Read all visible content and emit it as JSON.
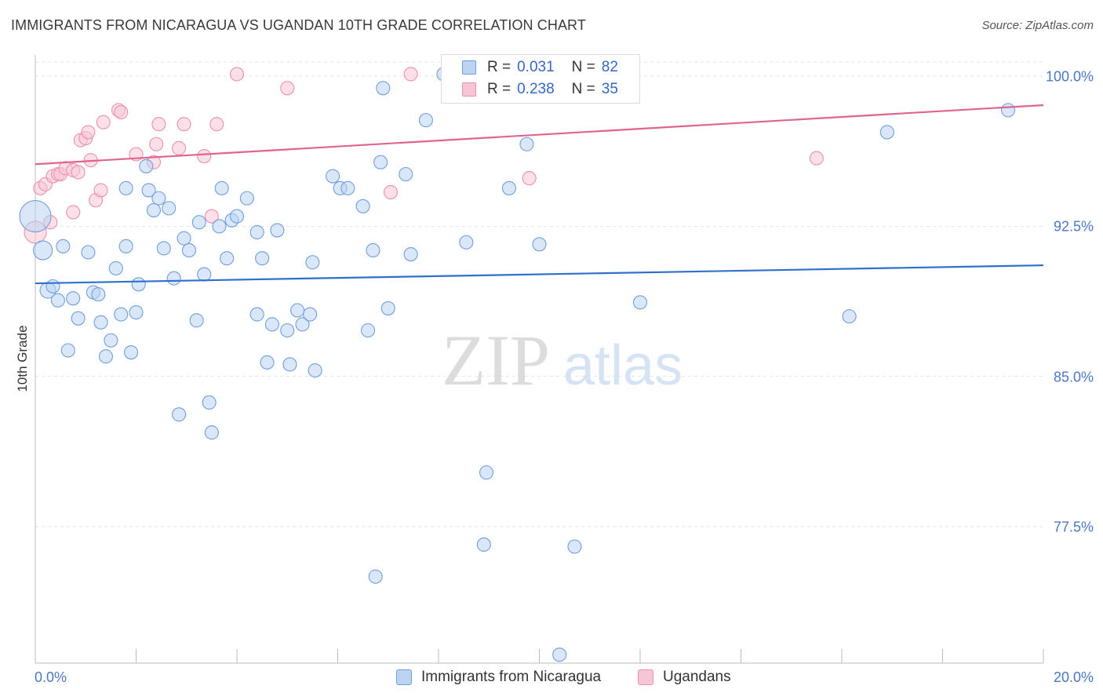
{
  "header": {
    "title": "IMMIGRANTS FROM NICARAGUA VS UGANDAN 10TH GRADE CORRELATION CHART",
    "source": "Source: ZipAtlas.com"
  },
  "watermark": {
    "zip": "ZIP",
    "atlas": "atlas"
  },
  "colors": {
    "blue_fill": "#bcd4f2",
    "blue_stroke": "#6f9fe0",
    "blue_line": "#2f6fcd",
    "pink_fill": "#f7c6d6",
    "pink_stroke": "#ee8fb0",
    "pink_line": "#e0648f",
    "axis_text": "#4a78c8",
    "grid": "#e4e4e4"
  },
  "legend": {
    "series": [
      {
        "r_label": "R =",
        "r_value": "0.031",
        "n_label": "N =",
        "n_value": "82"
      },
      {
        "r_label": "R =",
        "r_value": "0.238",
        "n_label": "N =",
        "n_value": "35"
      }
    ]
  },
  "bottom_legend": [
    "Immigrants from Nicaragua",
    "Ugandans"
  ],
  "chart_data": {
    "type": "scatter",
    "title": "IMMIGRANTS FROM NICARAGUA VS UGANDAN 10TH GRADE CORRELATION CHART",
    "xlabel": "",
    "ylabel": "10th Grade",
    "xlim": [
      0.0,
      20.0
    ],
    "ylim": [
      70.8,
      101.5
    ],
    "x_tick_labels": [
      "0.0%",
      "20.0%"
    ],
    "x_minor_ticks": [
      0,
      2,
      4,
      6,
      8,
      10,
      12,
      14,
      16,
      18,
      20
    ],
    "y_ticks": [
      77.5,
      85.0,
      92.5,
      100.0
    ],
    "y_tick_labels": [
      "77.5%",
      "85.0%",
      "92.5%",
      "100.0%"
    ],
    "grid": true,
    "legend_position": "top-center",
    "series": [
      {
        "name": "Immigrants from Nicaragua",
        "trend": {
          "x": [
            0.0,
            20.0
          ],
          "y": [
            89.65,
            90.55
          ]
        },
        "points": [
          [
            0.0,
            93.0
          ],
          [
            0.15,
            91.3
          ],
          [
            0.25,
            89.3
          ],
          [
            0.35,
            89.5
          ],
          [
            0.45,
            88.8
          ],
          [
            0.55,
            91.5
          ],
          [
            0.65,
            86.3
          ],
          [
            0.75,
            88.9
          ],
          [
            0.85,
            87.9
          ],
          [
            1.05,
            91.2
          ],
          [
            1.15,
            89.2
          ],
          [
            1.25,
            89.1
          ],
          [
            1.3,
            87.7
          ],
          [
            1.4,
            86.0
          ],
          [
            1.5,
            86.8
          ],
          [
            1.6,
            90.4
          ],
          [
            1.7,
            88.1
          ],
          [
            1.8,
            91.5
          ],
          [
            1.8,
            94.4
          ],
          [
            1.9,
            86.2
          ],
          [
            2.0,
            88.2
          ],
          [
            2.05,
            89.6
          ],
          [
            2.2,
            95.5
          ],
          [
            2.25,
            94.3
          ],
          [
            2.35,
            93.3
          ],
          [
            2.45,
            93.9
          ],
          [
            2.55,
            91.4
          ],
          [
            2.65,
            93.4
          ],
          [
            2.75,
            89.9
          ],
          [
            2.85,
            83.1
          ],
          [
            2.95,
            91.9
          ],
          [
            3.05,
            91.3
          ],
          [
            3.2,
            87.8
          ],
          [
            3.25,
            92.7
          ],
          [
            3.35,
            90.1
          ],
          [
            3.45,
            83.7
          ],
          [
            3.5,
            82.2
          ],
          [
            3.65,
            92.5
          ],
          [
            3.7,
            94.4
          ],
          [
            3.8,
            90.9
          ],
          [
            3.9,
            92.8
          ],
          [
            4.0,
            93.0
          ],
          [
            4.2,
            93.9
          ],
          [
            4.4,
            92.2
          ],
          [
            4.4,
            88.1
          ],
          [
            4.5,
            90.9
          ],
          [
            4.6,
            85.7
          ],
          [
            4.7,
            87.6
          ],
          [
            4.8,
            92.3
          ],
          [
            5.0,
            87.3
          ],
          [
            5.05,
            85.6
          ],
          [
            5.2,
            88.3
          ],
          [
            5.3,
            87.6
          ],
          [
            5.45,
            88.1
          ],
          [
            5.5,
            90.7
          ],
          [
            5.55,
            85.3
          ],
          [
            5.9,
            95.0
          ],
          [
            6.05,
            94.4
          ],
          [
            6.2,
            94.4
          ],
          [
            6.5,
            93.5
          ],
          [
            6.6,
            87.3
          ],
          [
            6.7,
            91.3
          ],
          [
            6.75,
            75.0
          ],
          [
            6.85,
            95.7
          ],
          [
            6.9,
            99.4
          ],
          [
            7.0,
            88.4
          ],
          [
            7.35,
            95.1
          ],
          [
            7.45,
            91.1
          ],
          [
            7.75,
            97.8
          ],
          [
            8.1,
            100.1
          ],
          [
            8.55,
            91.7
          ],
          [
            8.9,
            76.6
          ],
          [
            8.95,
            80.2
          ],
          [
            9.4,
            94.4
          ],
          [
            9.75,
            96.6
          ],
          [
            10.0,
            91.6
          ],
          [
            10.4,
            71.1
          ],
          [
            10.7,
            76.5
          ],
          [
            12.0,
            88.7
          ],
          [
            16.15,
            88.0
          ],
          [
            16.9,
            97.2
          ],
          [
            19.3,
            98.3
          ]
        ]
      },
      {
        "name": "Ugandans",
        "trend": {
          "x": [
            0.0,
            20.0
          ],
          "y": [
            95.6,
            98.55
          ]
        },
        "points": [
          [
            0.0,
            92.2
          ],
          [
            0.1,
            94.4
          ],
          [
            0.2,
            94.6
          ],
          [
            0.3,
            92.7
          ],
          [
            0.35,
            95.0
          ],
          [
            0.45,
            95.1
          ],
          [
            0.5,
            95.1
          ],
          [
            0.6,
            95.4
          ],
          [
            0.75,
            95.3
          ],
          [
            0.75,
            93.2
          ],
          [
            0.85,
            95.2
          ],
          [
            0.9,
            96.8
          ],
          [
            1.0,
            96.9
          ],
          [
            1.05,
            97.2
          ],
          [
            1.1,
            95.8
          ],
          [
            1.2,
            93.8
          ],
          [
            1.3,
            94.3
          ],
          [
            1.35,
            97.7
          ],
          [
            1.65,
            98.3
          ],
          [
            1.7,
            98.2
          ],
          [
            2.0,
            96.1
          ],
          [
            2.35,
            95.7
          ],
          [
            2.4,
            96.6
          ],
          [
            2.45,
            97.6
          ],
          [
            2.85,
            96.4
          ],
          [
            2.95,
            97.6
          ],
          [
            3.35,
            96.0
          ],
          [
            3.5,
            93.0
          ],
          [
            3.6,
            97.6
          ],
          [
            4.0,
            100.1
          ],
          [
            5.0,
            99.4
          ],
          [
            7.05,
            94.2
          ],
          [
            7.45,
            100.1
          ],
          [
            9.8,
            94.9
          ],
          [
            15.5,
            95.9
          ]
        ]
      }
    ]
  }
}
